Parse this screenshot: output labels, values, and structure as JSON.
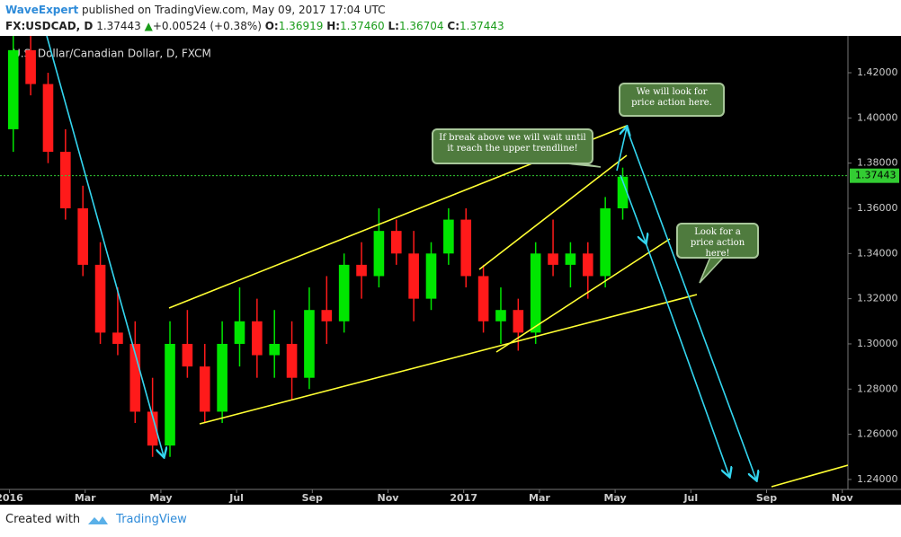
{
  "header": {
    "author": "WaveExpert",
    "published": "published on TradingView.com, May 09, 2017 17:04 UTC",
    "symbol": "FX:USDCAD, D",
    "price": "1.37443",
    "change": "+0.00524 (+0.38%)",
    "open_label": "O:",
    "open": "1.36919",
    "high_label": "H:",
    "high": "1.37460",
    "low_label": "L:",
    "low": "1.36704",
    "close_label": "C:",
    "close": "1.37443"
  },
  "chart_data": {
    "type": "candlestick",
    "title": "U.S. Dollar/Canadian Dollar, D, FXCM",
    "x": [
      0.1,
      0.56,
      1.02,
      1.48,
      1.94,
      2.4,
      2.86,
      3.32,
      3.78,
      4.24,
      4.7,
      5.16,
      5.62,
      6.08,
      6.54,
      7.0,
      7.46,
      7.92,
      8.38,
      8.84,
      9.3,
      9.76,
      10.22,
      10.68,
      11.14,
      11.6,
      12.06,
      12.52,
      12.98,
      13.44,
      13.9,
      14.36,
      14.82,
      15.28,
      15.74,
      16.2
    ],
    "open": [
      1.395,
      1.43,
      1.415,
      1.385,
      1.36,
      1.335,
      1.305,
      1.3,
      1.27,
      1.255,
      1.3,
      1.29,
      1.27,
      1.3,
      1.31,
      1.295,
      1.3,
      1.285,
      1.315,
      1.31,
      1.335,
      1.33,
      1.35,
      1.34,
      1.32,
      1.34,
      1.355,
      1.33,
      1.31,
      1.315,
      1.305,
      1.34,
      1.335,
      1.34,
      1.33,
      1.36
    ],
    "high": [
      1.44,
      1.46,
      1.42,
      1.395,
      1.37,
      1.345,
      1.325,
      1.31,
      1.285,
      1.31,
      1.315,
      1.3,
      1.31,
      1.325,
      1.32,
      1.315,
      1.31,
      1.325,
      1.33,
      1.34,
      1.345,
      1.36,
      1.355,
      1.35,
      1.345,
      1.36,
      1.36,
      1.335,
      1.325,
      1.32,
      1.345,
      1.355,
      1.345,
      1.345,
      1.365,
      1.378
    ],
    "low": [
      1.385,
      1.41,
      1.38,
      1.355,
      1.33,
      1.3,
      1.295,
      1.265,
      1.25,
      1.25,
      1.285,
      1.265,
      1.265,
      1.29,
      1.285,
      1.285,
      1.275,
      1.28,
      1.3,
      1.305,
      1.32,
      1.325,
      1.335,
      1.31,
      1.315,
      1.335,
      1.325,
      1.305,
      1.3,
      1.297,
      1.3,
      1.33,
      1.325,
      1.32,
      1.325,
      1.355
    ],
    "close": [
      1.43,
      1.415,
      1.385,
      1.36,
      1.335,
      1.305,
      1.3,
      1.27,
      1.255,
      1.3,
      1.29,
      1.27,
      1.3,
      1.31,
      1.295,
      1.3,
      1.285,
      1.315,
      1.31,
      1.335,
      1.33,
      1.35,
      1.34,
      1.32,
      1.34,
      1.355,
      1.33,
      1.31,
      1.315,
      1.305,
      1.34,
      1.335,
      1.34,
      1.33,
      1.36,
      1.374
    ],
    "up_color": "#00e600",
    "down_color": "#ff1a1a",
    "last_price": 1.37443,
    "xlim": [
      -0.25,
      22.15
    ],
    "xticks": [
      {
        "value": 0,
        "label": "2016"
      },
      {
        "value": 2,
        "label": "Mar"
      },
      {
        "value": 4,
        "label": "May"
      },
      {
        "value": 6,
        "label": "Jul"
      },
      {
        "value": 8,
        "label": "Sep"
      },
      {
        "value": 10,
        "label": "Nov"
      },
      {
        "value": 12,
        "label": "2017"
      },
      {
        "value": 14,
        "label": "Mar"
      },
      {
        "value": 16,
        "label": "May"
      },
      {
        "value": 18,
        "label": "Jul"
      },
      {
        "value": 20,
        "label": "Sep"
      },
      {
        "value": 22,
        "label": "Nov"
      }
    ],
    "ylim": [
      1.2356,
      1.4363
    ],
    "yticks": [
      {
        "value": 1.24,
        "label": "1.24000"
      },
      {
        "value": 1.26,
        "label": "1.26000"
      },
      {
        "value": 1.28,
        "label": "1.28000"
      },
      {
        "value": 1.3,
        "label": "1.30000"
      },
      {
        "value": 1.32,
        "label": "1.32000"
      },
      {
        "value": 1.34,
        "label": "1.34000"
      },
      {
        "value": 1.36,
        "label": "1.36000"
      },
      {
        "value": 1.38,
        "label": "1.38000"
      },
      {
        "value": 1.4,
        "label": "1.40000"
      },
      {
        "value": 1.42,
        "label": "1.42000"
      }
    ],
    "grid": false,
    "annotations": [
      "We will look for price action here.",
      "If break above we will wait until it reach the upper trendline!",
      "Look for a price action here!"
    ]
  },
  "footer": {
    "created": "Created with",
    "brand": "TradingView"
  }
}
